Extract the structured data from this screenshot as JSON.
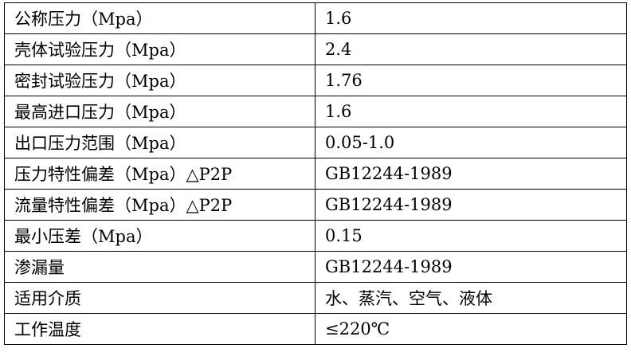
{
  "table": {
    "rows": [
      [
        "公称压力（Mpa）",
        "1.6"
      ],
      [
        "壳体试验压力（Mpa）",
        "2.4"
      ],
      [
        "密封试验压力（Mpa）",
        "1.76"
      ],
      [
        "最高进口压力（Mpa）",
        "1.6"
      ],
      [
        "出口压力范围（Mpa）",
        "0.05-1.0"
      ],
      [
        "压力特性偏差（Mpa）△P2P",
        "GB12244-1989"
      ],
      [
        "流量特性偏差（Mpa）△P2P",
        "GB12244-1989"
      ],
      [
        "最小压差（Mpa）",
        "0.15"
      ],
      [
        "渗漏量",
        "GB12244-1989"
      ],
      [
        "适用介质",
        "水、蒸汽、空气、液体"
      ],
      [
        "工作温度",
        "≤220℃"
      ]
    ]
  }
}
